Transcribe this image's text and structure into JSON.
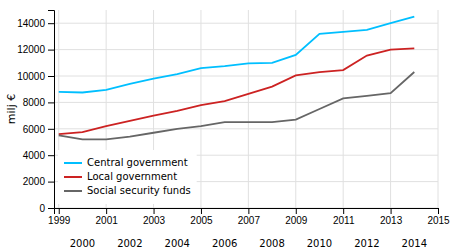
{
  "chart_data": {
    "type": "line",
    "x": [
      1999,
      2000,
      2001,
      2002,
      2003,
      2004,
      2005,
      2006,
      2007,
      2008,
      2009,
      2010,
      2011,
      2012,
      2013,
      2014
    ],
    "series": [
      {
        "name": "Central government",
        "color": "#00BFFF",
        "values": [
          8800,
          8750,
          8950,
          9400,
          9800,
          10150,
          10600,
          10750,
          10950,
          11000,
          11600,
          13200,
          13350,
          13500,
          14000,
          14500
        ]
      },
      {
        "name": "Local government",
        "color": "#CC2222",
        "values": [
          5600,
          5750,
          6200,
          6600,
          7000,
          7350,
          7800,
          8100,
          8650,
          9200,
          10050,
          10300,
          10450,
          11550,
          12000,
          12100
        ]
      },
      {
        "name": "Social security funds",
        "color": "#666666",
        "values": [
          5500,
          5200,
          5200,
          5400,
          5700,
          6000,
          6200,
          6500,
          6500,
          6500,
          6700,
          7500,
          8300,
          8500,
          8700,
          10300
        ]
      }
    ],
    "ylabel": "milj €",
    "ylim": [
      0,
      15000
    ],
    "yticks": [
      0,
      2000,
      4000,
      6000,
      8000,
      10000,
      12000,
      14000
    ],
    "xlim": [
      1998.8,
      2015.0
    ],
    "xticks": [
      1999,
      2001,
      2003,
      2005,
      2007,
      2009,
      2011,
      2013,
      2015
    ],
    "annotations": [
      {
        "text": "2000",
        "x": 2000
      },
      {
        "text": "2002",
        "x": 2002
      },
      {
        "text": "2004",
        "x": 2004
      },
      {
        "text": "2006",
        "x": 2006
      },
      {
        "text": "2008",
        "x": 2008
      },
      {
        "text": "2010",
        "x": 2010
      },
      {
        "text": "2012",
        "x": 2012
      },
      {
        "text": "2014",
        "x": 2014
      }
    ],
    "grid": true,
    "legend": "lower left"
  }
}
